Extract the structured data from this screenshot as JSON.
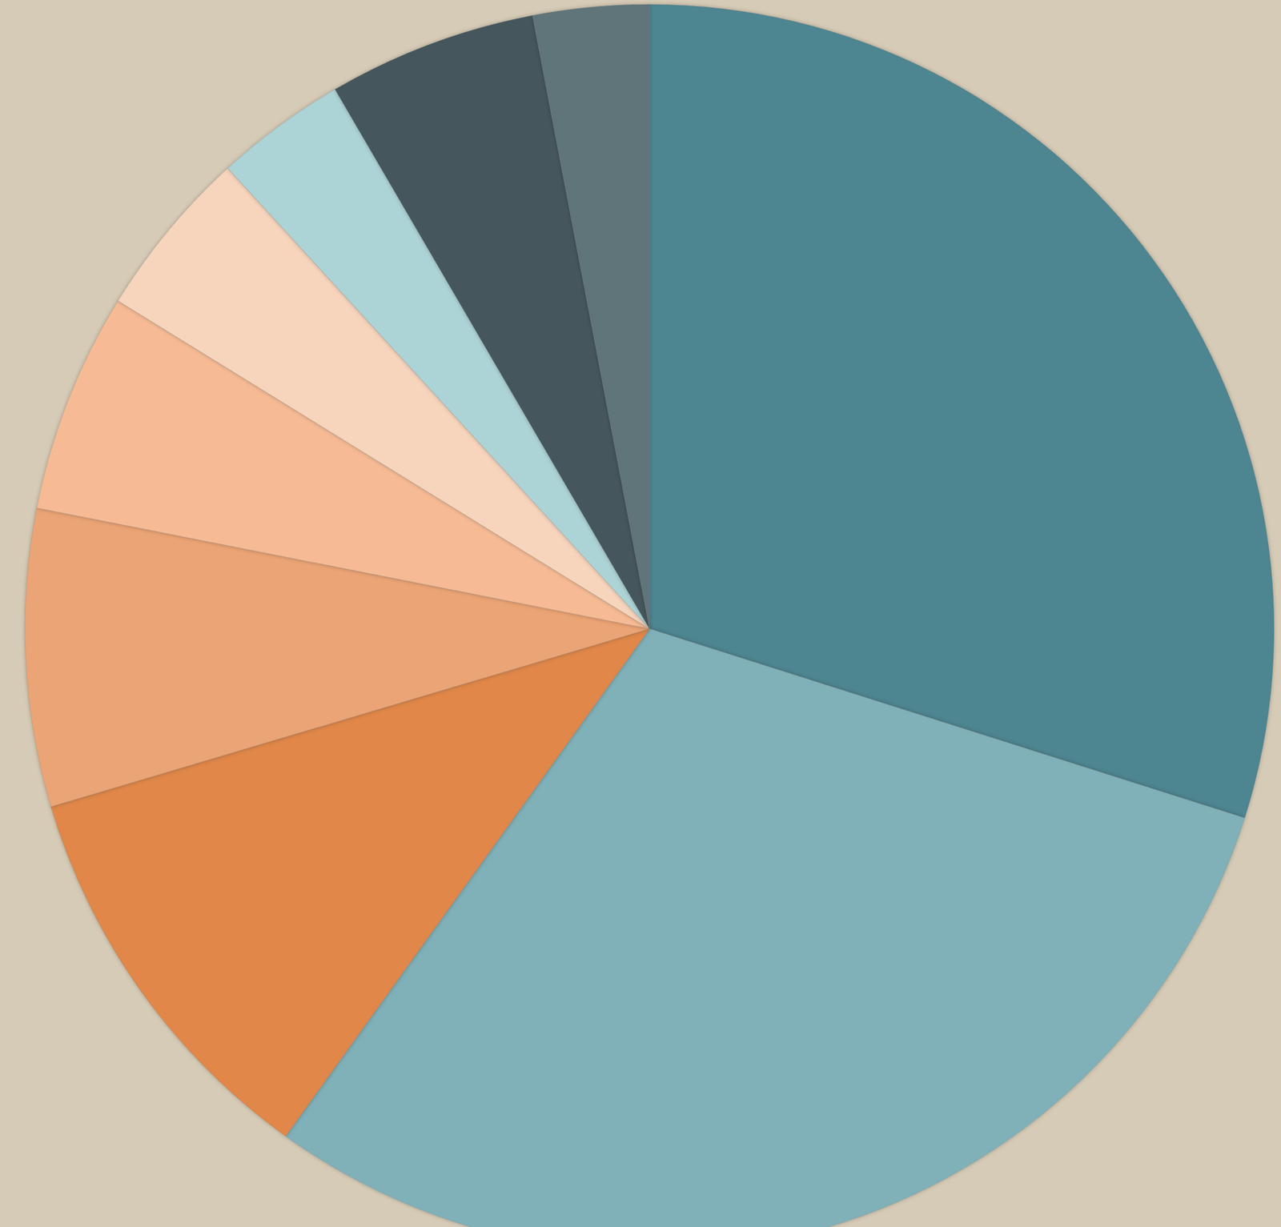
{
  "chart_data": {
    "type": "pie",
    "values": [
      29.9,
      30.0,
      10.5,
      7.7,
      5.7,
      4.4,
      3.4,
      5.4,
      3.0
    ],
    "colors": [
      "#4e8590",
      "#80b0b8",
      "#e0874a",
      "#eba475",
      "#f6bb94",
      "#f7d4bc",
      "#acd3d6",
      "#44575b",
      "#5f7479"
    ],
    "legend": "none",
    "data_labels": false
  }
}
